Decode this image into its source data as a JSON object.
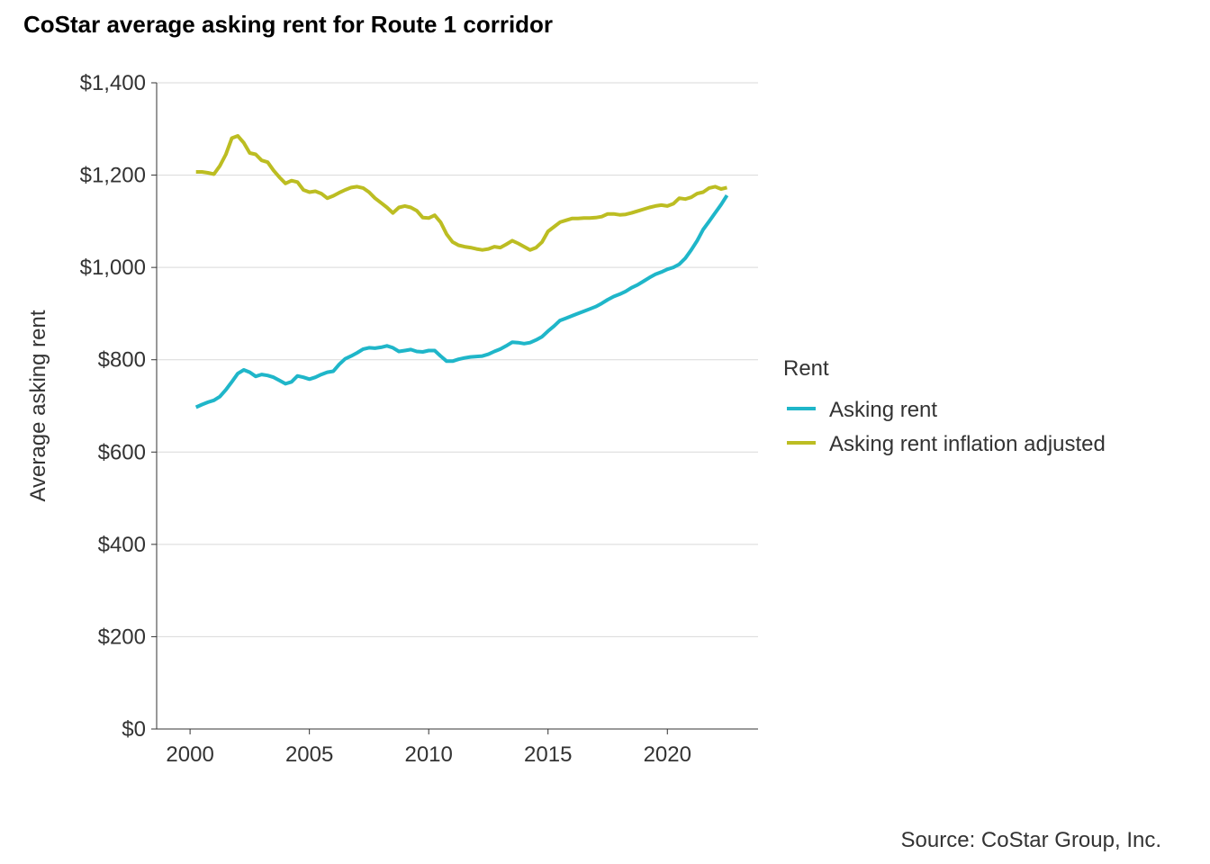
{
  "chart_data": {
    "type": "line",
    "title": "CoStar average asking rent for Route 1 corridor",
    "xlabel": "",
    "ylabel": "Average asking rent",
    "xlim": [
      1998.6,
      2023.8
    ],
    "ylim": [
      0,
      1400
    ],
    "x_ticks": [
      2000,
      2005,
      2010,
      2015,
      2020
    ],
    "x_tick_labels": [
      "2000",
      "2005",
      "2010",
      "2015",
      "2020"
    ],
    "y_ticks": [
      0,
      200,
      400,
      600,
      800,
      1000,
      1200,
      1400
    ],
    "y_tick_labels": [
      "$0",
      "$200",
      "$400",
      "$600",
      "$800",
      "$1,000",
      "$1,200",
      "$1,400"
    ],
    "grid": "horizontal",
    "legend_title": "Rent",
    "legend_position": "right",
    "source": "Source: CoStar Group, Inc.",
    "series": [
      {
        "name": "Asking rent",
        "color": "#1fb6c9",
        "x": [
          2000.25,
          2000.5,
          2000.75,
          2001.0,
          2001.25,
          2001.5,
          2001.75,
          2002.0,
          2002.25,
          2002.5,
          2002.75,
          2003.0,
          2003.25,
          2003.5,
          2003.75,
          2004.0,
          2004.25,
          2004.5,
          2004.75,
          2005.0,
          2005.25,
          2005.5,
          2005.75,
          2006.0,
          2006.25,
          2006.5,
          2006.75,
          2007.0,
          2007.25,
          2007.5,
          2007.75,
          2008.0,
          2008.25,
          2008.5,
          2008.75,
          2009.0,
          2009.25,
          2009.5,
          2009.75,
          2010.0,
          2010.25,
          2010.5,
          2010.75,
          2011.0,
          2011.25,
          2011.5,
          2011.75,
          2012.0,
          2012.25,
          2012.5,
          2012.75,
          2013.0,
          2013.25,
          2013.5,
          2013.75,
          2014.0,
          2014.25,
          2014.5,
          2014.75,
          2015.0,
          2015.25,
          2015.5,
          2015.75,
          2016.0,
          2016.25,
          2016.5,
          2016.75,
          2017.0,
          2017.25,
          2017.5,
          2017.75,
          2018.0,
          2018.25,
          2018.5,
          2018.75,
          2019.0,
          2019.25,
          2019.5,
          2019.75,
          2020.0,
          2020.25,
          2020.5,
          2020.75,
          2021.0,
          2021.25,
          2021.5,
          2021.75,
          2022.0,
          2022.25,
          2022.5
        ],
        "values": [
          697,
          703,
          708,
          712,
          720,
          735,
          752,
          770,
          778,
          773,
          764,
          768,
          766,
          762,
          755,
          748,
          752,
          765,
          762,
          758,
          762,
          768,
          773,
          775,
          790,
          802,
          808,
          815,
          823,
          826,
          825,
          827,
          830,
          826,
          818,
          820,
          822,
          818,
          817,
          820,
          820,
          808,
          797,
          797,
          801,
          804,
          806,
          807,
          808,
          812,
          818,
          823,
          830,
          838,
          837,
          835,
          837,
          843,
          850,
          862,
          873,
          885,
          890,
          895,
          900,
          905,
          910,
          915,
          922,
          930,
          937,
          942,
          948,
          956,
          962,
          970,
          978,
          985,
          990,
          996,
          1000,
          1007,
          1020,
          1038,
          1058,
          1082,
          1100,
          1118,
          1136,
          1156
        ]
      },
      {
        "name": "Asking rent inflation adjusted",
        "color": "#bcbd22",
        "x": [
          2000.25,
          2000.5,
          2000.75,
          2001.0,
          2001.25,
          2001.5,
          2001.75,
          2002.0,
          2002.25,
          2002.5,
          2002.75,
          2003.0,
          2003.25,
          2003.5,
          2003.75,
          2004.0,
          2004.25,
          2004.5,
          2004.75,
          2005.0,
          2005.25,
          2005.5,
          2005.75,
          2006.0,
          2006.25,
          2006.5,
          2006.75,
          2007.0,
          2007.25,
          2007.5,
          2007.75,
          2008.0,
          2008.25,
          2008.5,
          2008.75,
          2009.0,
          2009.25,
          2009.5,
          2009.75,
          2010.0,
          2010.25,
          2010.5,
          2010.75,
          2011.0,
          2011.25,
          2011.5,
          2011.75,
          2012.0,
          2012.25,
          2012.5,
          2012.75,
          2013.0,
          2013.25,
          2013.5,
          2013.75,
          2014.0,
          2014.25,
          2014.5,
          2014.75,
          2015.0,
          2015.25,
          2015.5,
          2015.75,
          2016.0,
          2016.25,
          2016.5,
          2016.75,
          2017.0,
          2017.25,
          2017.5,
          2017.75,
          2018.0,
          2018.25,
          2018.5,
          2018.75,
          2019.0,
          2019.25,
          2019.5,
          2019.75,
          2020.0,
          2020.25,
          2020.5,
          2020.75,
          2021.0,
          2021.25,
          2021.5,
          2021.75,
          2022.0,
          2022.25,
          2022.5
        ],
        "values": [
          1207,
          1207,
          1205,
          1202,
          1220,
          1245,
          1280,
          1285,
          1270,
          1248,
          1245,
          1232,
          1228,
          1210,
          1195,
          1182,
          1188,
          1185,
          1168,
          1163,
          1165,
          1160,
          1150,
          1155,
          1162,
          1168,
          1173,
          1175,
          1172,
          1163,
          1150,
          1140,
          1130,
          1118,
          1130,
          1133,
          1130,
          1123,
          1108,
          1107,
          1113,
          1098,
          1072,
          1055,
          1048,
          1045,
          1043,
          1040,
          1038,
          1040,
          1045,
          1043,
          1050,
          1058,
          1052,
          1045,
          1038,
          1043,
          1055,
          1078,
          1088,
          1098,
          1102,
          1106,
          1106,
          1107,
          1107,
          1108,
          1110,
          1116,
          1116,
          1114,
          1115,
          1118,
          1122,
          1126,
          1130,
          1133,
          1135,
          1133,
          1138,
          1150,
          1148,
          1152,
          1160,
          1163,
          1172,
          1175,
          1170,
          1173
        ]
      }
    ]
  }
}
